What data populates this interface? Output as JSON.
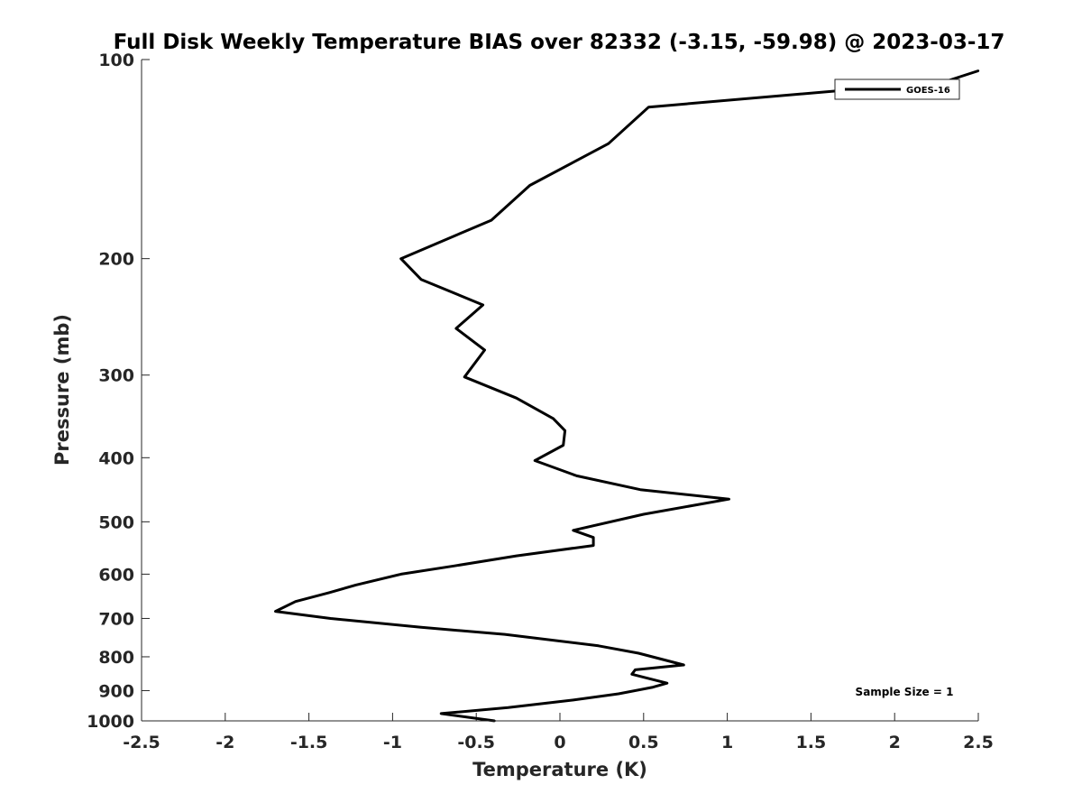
{
  "chart_data": {
    "type": "line",
    "title": "Full Disk Weekly Temperature BIAS over 82332 (-3.15, -59.98) @ 2023-03-17",
    "xlabel": "Temperature (K)",
    "ylabel": "Pressure (mb)",
    "xlim": [
      -2.5,
      2.5
    ],
    "ylim": [
      1000,
      100
    ],
    "y_scale": "log",
    "y_reversed": true,
    "x_ticks": [
      -2.5,
      -2,
      -1.5,
      -1,
      -0.5,
      0,
      0.5,
      1,
      1.5,
      2,
      2.5
    ],
    "x_tick_labels": [
      "-2.5",
      "-2",
      "-1.5",
      "-1",
      "-0.5",
      "0",
      "0.5",
      "1",
      "1.5",
      "2",
      "2.5"
    ],
    "y_ticks": [
      100,
      200,
      300,
      400,
      500,
      600,
      700,
      800,
      900,
      1000
    ],
    "y_tick_labels": [
      "100",
      "200",
      "300",
      "400",
      "500",
      "600",
      "700",
      "800",
      "900",
      "1000"
    ],
    "grid": false,
    "legend_position": "top-right",
    "annotation": "Sample Size = 1",
    "series": [
      {
        "name": "GOES-16",
        "color": "#000000",
        "points": [
          {
            "x": -0.39,
            "y": 1000
          },
          {
            "x": -0.71,
            "y": 975
          },
          {
            "x": -0.31,
            "y": 955
          },
          {
            "x": 0.08,
            "y": 930
          },
          {
            "x": 0.35,
            "y": 910
          },
          {
            "x": 0.55,
            "y": 890
          },
          {
            "x": 0.64,
            "y": 877
          },
          {
            "x": 0.43,
            "y": 850
          },
          {
            "x": 0.45,
            "y": 837
          },
          {
            "x": 0.74,
            "y": 823
          },
          {
            "x": 0.47,
            "y": 790
          },
          {
            "x": 0.23,
            "y": 770
          },
          {
            "x": -0.33,
            "y": 740
          },
          {
            "x": -0.83,
            "y": 722
          },
          {
            "x": -1.37,
            "y": 700
          },
          {
            "x": -1.7,
            "y": 683
          },
          {
            "x": -1.58,
            "y": 660
          },
          {
            "x": -1.38,
            "y": 640
          },
          {
            "x": -1.22,
            "y": 623
          },
          {
            "x": -0.95,
            "y": 600
          },
          {
            "x": -0.63,
            "y": 583
          },
          {
            "x": -0.26,
            "y": 563
          },
          {
            "x": 0.2,
            "y": 543
          },
          {
            "x": 0.2,
            "y": 528
          },
          {
            "x": 0.08,
            "y": 515
          },
          {
            "x": 0.5,
            "y": 487
          },
          {
            "x": 1.01,
            "y": 462
          },
          {
            "x": 0.48,
            "y": 447
          },
          {
            "x": 0.1,
            "y": 426
          },
          {
            "x": -0.15,
            "y": 404
          },
          {
            "x": 0.02,
            "y": 383
          },
          {
            "x": 0.03,
            "y": 364
          },
          {
            "x": -0.04,
            "y": 349
          },
          {
            "x": -0.26,
            "y": 325
          },
          {
            "x": -0.57,
            "y": 302
          },
          {
            "x": -0.45,
            "y": 275
          },
          {
            "x": -0.62,
            "y": 255
          },
          {
            "x": -0.46,
            "y": 235
          },
          {
            "x": -0.83,
            "y": 215
          },
          {
            "x": -0.95,
            "y": 200
          },
          {
            "x": -0.41,
            "y": 175
          },
          {
            "x": -0.18,
            "y": 155
          },
          {
            "x": 0.29,
            "y": 134
          },
          {
            "x": 0.53,
            "y": 118
          },
          {
            "x": 2.3,
            "y": 108
          },
          {
            "x": 2.5,
            "y": 104
          }
        ]
      }
    ]
  }
}
